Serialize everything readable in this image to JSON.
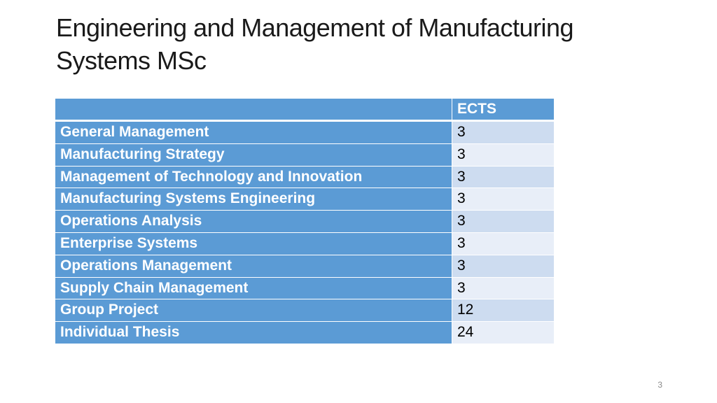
{
  "slide": {
    "title": "Engineering and Management of Manufacturing Systems MSc",
    "page_number": "3"
  },
  "table": {
    "header": {
      "name": "",
      "ects": "ECTS"
    },
    "rows": [
      {
        "name": "General Management",
        "ects": "3"
      },
      {
        "name": "Manufacturing Strategy",
        "ects": "3"
      },
      {
        "name": "Management of Technology and Innovation",
        "ects": "3"
      },
      {
        "name": "Manufacturing Systems Engineering",
        "ects": "3"
      },
      {
        "name": "Operations Analysis",
        "ects": "3"
      },
      {
        "name": "Enterprise Systems",
        "ects": "3"
      },
      {
        "name": "Operations Management",
        "ects": "3"
      },
      {
        "name": "Supply Chain Management",
        "ects": "3"
      },
      {
        "name": "Group Project",
        "ects": "12"
      },
      {
        "name": "Individual Thesis",
        "ects": "24"
      }
    ]
  },
  "colors": {
    "header_fill": "#5b9bd5",
    "row_fill_odd": "#cddcf0",
    "row_fill_even": "#e8eef8"
  }
}
